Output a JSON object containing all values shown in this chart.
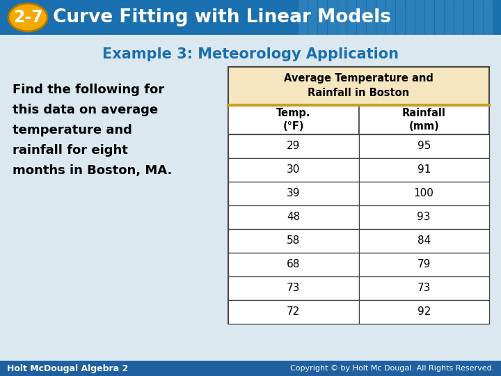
{
  "header_bg": "#1a6faf",
  "header_tile_color": "#3a8fc5",
  "badge_color": "#f5a800",
  "badge_text": "2-7",
  "header_title": "Curve Fitting with Linear Models",
  "subtitle": "Example 3: Meteorology Application",
  "subtitle_color": "#1a6faf",
  "body_bg": "#dce8f0",
  "left_text_lines": [
    "Find the following for",
    "this data on average",
    "temperature and",
    "rainfall for eight",
    "months in Boston, MA."
  ],
  "left_text_color": "#000000",
  "table_title": "Average Temperature and\nRainfall in Boston",
  "table_title_bg": "#f5e6c0",
  "col1_header": "Temp.\n(°F)",
  "col2_header": "Rainfall\n(mm)",
  "temp_values": [
    29,
    30,
    39,
    48,
    58,
    68,
    73,
    72
  ],
  "rain_values": [
    95,
    91,
    100,
    93,
    84,
    79,
    73,
    92
  ],
  "footer_bg": "#2060a0",
  "footer_left_text": "Holt McDougal Algebra 2",
  "footer_right_text": "Copyright © by Holt Mc Dougal. All Rights Reserved.",
  "table_border_color": "#444444",
  "table_title_border": "#c8a020",
  "table_cell_bg": "#f8f8f8"
}
